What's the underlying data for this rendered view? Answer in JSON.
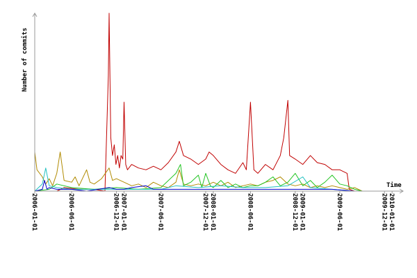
{
  "chart_data": {
    "type": "line",
    "title": "",
    "xlabel": "Time",
    "ylabel": "Number of commits",
    "grid": false,
    "legend": "none",
    "x_ticks": [
      "2006-01-01",
      "2006-06-01",
      "2006-12-01",
      "2007-01-01",
      "2007-06-01",
      "2007-12-01",
      "2008-01-01",
      "2008-06-01",
      "2008-12-01",
      "2009-01-01",
      "2009-06-01",
      "2009-12-01",
      "2010-01-01"
    ],
    "xlim": [
      "2006-01-01",
      "2010-02-15"
    ],
    "ylim": [
      0,
      100
    ],
    "colors": {
      "red": "#c00000",
      "olive": "#b08a00",
      "green": "#22c422",
      "cyan": "#20c0c0",
      "blue": "#0000cc",
      "axis": "#999999"
    },
    "series": [
      {
        "color": "#c00000",
        "points": [
          [
            "2006-04-01",
            0
          ],
          [
            "2006-05-01",
            2
          ],
          [
            "2006-07-01",
            1
          ],
          [
            "2006-09-01",
            1
          ],
          [
            "2006-10-15",
            0
          ],
          [
            "2006-10-29",
            65
          ],
          [
            "2006-11-01",
            100
          ],
          [
            "2006-11-08",
            30
          ],
          [
            "2006-11-15",
            20
          ],
          [
            "2006-11-22",
            26
          ],
          [
            "2006-11-29",
            15
          ],
          [
            "2006-12-06",
            20
          ],
          [
            "2006-12-13",
            13
          ],
          [
            "2006-12-20",
            20
          ],
          [
            "2006-12-27",
            18
          ],
          [
            "2007-01-01",
            50
          ],
          [
            "2007-01-08",
            15
          ],
          [
            "2007-01-15",
            12
          ],
          [
            "2007-02-01",
            15
          ],
          [
            "2007-03-01",
            13
          ],
          [
            "2007-04-01",
            12
          ],
          [
            "2007-05-01",
            14
          ],
          [
            "2007-06-01",
            12
          ],
          [
            "2007-07-01",
            16
          ],
          [
            "2007-08-01",
            22
          ],
          [
            "2007-08-15",
            28
          ],
          [
            "2007-09-01",
            20
          ],
          [
            "2007-10-01",
            18
          ],
          [
            "2007-11-01",
            15
          ],
          [
            "2007-12-01",
            18
          ],
          [
            "2007-12-15",
            22
          ],
          [
            "2008-01-01",
            20
          ],
          [
            "2008-02-01",
            15
          ],
          [
            "2008-03-01",
            12
          ],
          [
            "2008-04-01",
            10
          ],
          [
            "2008-05-01",
            16
          ],
          [
            "2008-05-15",
            12
          ],
          [
            "2008-06-01",
            50
          ],
          [
            "2008-06-15",
            12
          ],
          [
            "2008-07-01",
            10
          ],
          [
            "2008-08-01",
            15
          ],
          [
            "2008-09-01",
            12
          ],
          [
            "2008-10-01",
            20
          ],
          [
            "2008-10-15",
            30
          ],
          [
            "2008-11-01",
            51
          ],
          [
            "2008-11-08",
            20
          ],
          [
            "2008-12-01",
            18
          ],
          [
            "2009-01-01",
            15
          ],
          [
            "2009-02-01",
            20
          ],
          [
            "2009-03-01",
            16
          ],
          [
            "2009-04-01",
            15
          ],
          [
            "2009-05-01",
            12
          ],
          [
            "2009-06-01",
            12
          ],
          [
            "2009-07-01",
            10
          ],
          [
            "2009-07-10",
            1
          ],
          [
            "2009-08-01",
            0
          ]
        ]
      },
      {
        "color": "#b08a00",
        "points": [
          [
            "2006-01-01",
            22
          ],
          [
            "2006-01-10",
            12
          ],
          [
            "2006-02-01",
            8
          ],
          [
            "2006-02-15",
            4
          ],
          [
            "2006-03-01",
            7
          ],
          [
            "2006-03-15",
            3
          ],
          [
            "2006-04-01",
            10
          ],
          [
            "2006-04-15",
            22
          ],
          [
            "2006-05-01",
            6
          ],
          [
            "2006-06-01",
            5
          ],
          [
            "2006-06-15",
            8
          ],
          [
            "2006-07-01",
            3
          ],
          [
            "2006-08-01",
            12
          ],
          [
            "2006-08-15",
            5
          ],
          [
            "2006-09-01",
            4
          ],
          [
            "2006-10-01",
            7
          ],
          [
            "2006-11-01",
            13
          ],
          [
            "2006-11-15",
            6
          ],
          [
            "2006-12-01",
            7
          ],
          [
            "2007-01-01",
            5
          ],
          [
            "2007-02-01",
            3
          ],
          [
            "2007-03-01",
            4
          ],
          [
            "2007-04-01",
            2
          ],
          [
            "2007-05-01",
            5
          ],
          [
            "2007-06-01",
            3
          ],
          [
            "2007-07-01",
            2
          ],
          [
            "2007-08-01",
            5
          ],
          [
            "2007-08-15",
            12
          ],
          [
            "2007-09-01",
            4
          ],
          [
            "2007-10-01",
            3
          ],
          [
            "2007-11-01",
            4
          ],
          [
            "2007-12-01",
            3
          ],
          [
            "2008-01-01",
            5
          ],
          [
            "2008-02-01",
            3
          ],
          [
            "2008-03-01",
            5
          ],
          [
            "2008-04-01",
            2
          ],
          [
            "2008-05-01",
            3
          ],
          [
            "2008-06-01",
            4
          ],
          [
            "2008-07-01",
            3
          ],
          [
            "2008-08-01",
            5
          ],
          [
            "2008-09-01",
            6
          ],
          [
            "2008-10-01",
            8
          ],
          [
            "2008-11-01",
            4
          ],
          [
            "2008-12-01",
            3
          ],
          [
            "2009-01-01",
            4
          ],
          [
            "2009-02-01",
            2
          ],
          [
            "2009-03-01",
            3
          ],
          [
            "2009-04-01",
            2
          ],
          [
            "2009-05-01",
            3
          ],
          [
            "2009-06-01",
            2
          ],
          [
            "2009-07-01",
            1
          ],
          [
            "2009-08-01",
            2
          ],
          [
            "2009-09-01",
            0
          ]
        ]
      },
      {
        "color": "#22c422",
        "points": [
          [
            "2006-01-01",
            0
          ],
          [
            "2006-03-01",
            1
          ],
          [
            "2006-04-01",
            4
          ],
          [
            "2006-06-01",
            2
          ],
          [
            "2006-09-01",
            1
          ],
          [
            "2006-12-01",
            2
          ],
          [
            "2007-03-01",
            1
          ],
          [
            "2007-06-01",
            2
          ],
          [
            "2007-08-01",
            10
          ],
          [
            "2007-08-20",
            15
          ],
          [
            "2007-09-01",
            3
          ],
          [
            "2007-10-01",
            5
          ],
          [
            "2007-11-01",
            9
          ],
          [
            "2007-11-15",
            2
          ],
          [
            "2007-12-01",
            10
          ],
          [
            "2007-12-20",
            3
          ],
          [
            "2008-01-01",
            2
          ],
          [
            "2008-02-01",
            6
          ],
          [
            "2008-03-01",
            2
          ],
          [
            "2008-04-01",
            4
          ],
          [
            "2008-05-01",
            2
          ],
          [
            "2008-06-01",
            3
          ],
          [
            "2008-07-01",
            3
          ],
          [
            "2008-08-01",
            5
          ],
          [
            "2008-09-01",
            8
          ],
          [
            "2008-10-01",
            3
          ],
          [
            "2008-11-01",
            5
          ],
          [
            "2008-12-01",
            10
          ],
          [
            "2009-01-01",
            3
          ],
          [
            "2009-02-01",
            6
          ],
          [
            "2009-03-01",
            2
          ],
          [
            "2009-04-01",
            5
          ],
          [
            "2009-05-01",
            9
          ],
          [
            "2009-06-01",
            4
          ],
          [
            "2009-07-01",
            3
          ],
          [
            "2009-08-01",
            1
          ],
          [
            "2009-09-01",
            0
          ]
        ]
      },
      {
        "color": "#20c0c0",
        "points": [
          [
            "2006-01-01",
            0
          ],
          [
            "2006-02-01",
            4
          ],
          [
            "2006-02-15",
            13
          ],
          [
            "2006-03-01",
            3
          ],
          [
            "2006-04-01",
            2
          ],
          [
            "2006-06-01",
            1
          ],
          [
            "2006-09-01",
            1
          ],
          [
            "2006-12-01",
            1
          ],
          [
            "2007-03-01",
            1
          ],
          [
            "2007-06-01",
            1
          ],
          [
            "2007-08-01",
            3
          ],
          [
            "2007-11-01",
            2
          ],
          [
            "2008-02-01",
            3
          ],
          [
            "2008-05-01",
            2
          ],
          [
            "2008-08-01",
            2
          ],
          [
            "2008-11-01",
            3
          ],
          [
            "2009-01-01",
            8
          ],
          [
            "2009-02-01",
            2
          ],
          [
            "2009-05-01",
            1
          ],
          [
            "2009-08-01",
            0
          ]
        ]
      },
      {
        "color": "#0000cc",
        "points": [
          [
            "2006-01-01",
            0
          ],
          [
            "2006-02-01",
            1
          ],
          [
            "2006-02-10",
            6
          ],
          [
            "2006-02-20",
            1
          ],
          [
            "2006-03-01",
            2
          ],
          [
            "2006-04-01",
            1
          ],
          [
            "2006-06-01",
            1
          ],
          [
            "2006-08-01",
            0
          ],
          [
            "2006-11-01",
            2
          ],
          [
            "2006-12-01",
            1
          ],
          [
            "2007-01-01",
            1
          ],
          [
            "2007-02-01",
            2
          ],
          [
            "2007-04-01",
            3
          ],
          [
            "2007-05-01",
            1
          ],
          [
            "2007-08-01",
            1
          ],
          [
            "2007-11-01",
            1
          ],
          [
            "2008-02-01",
            1
          ],
          [
            "2008-05-01",
            1
          ],
          [
            "2008-08-01",
            1
          ],
          [
            "2008-11-01",
            1
          ],
          [
            "2009-02-01",
            1
          ],
          [
            "2009-05-01",
            1
          ],
          [
            "2009-08-01",
            0
          ]
        ]
      }
    ]
  }
}
